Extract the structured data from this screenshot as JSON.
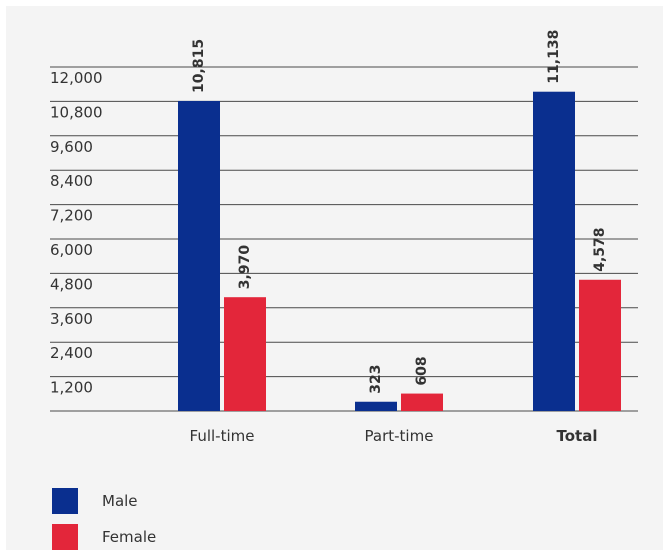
{
  "chart_data": {
    "type": "bar",
    "title": "",
    "xlabel": "",
    "ylabel": "",
    "categories": [
      "Full-time",
      "Part-time",
      "Total"
    ],
    "category_bold": [
      false,
      false,
      true
    ],
    "series": [
      {
        "name": "Male",
        "color": "#0a2f8f",
        "values": [
          10815,
          323,
          11138
        ]
      },
      {
        "name": "Female",
        "color": "#e3263a",
        "values": [
          3970,
          608,
          4578
        ]
      }
    ],
    "value_labels": {
      "Male": [
        "10,815",
        "323",
        "11,138"
      ],
      "Female": [
        "3,970",
        "608",
        "4,578"
      ]
    },
    "yticks": [
      1200,
      2400,
      3600,
      4800,
      6000,
      7200,
      8400,
      9600,
      10800,
      12000
    ],
    "ytick_labels": [
      "1,200",
      "2,400",
      "3,600",
      "4,800",
      "6,000",
      "7,200",
      "8,400",
      "9,600",
      "10,800",
      "12,000"
    ],
    "ylim": [
      0,
      12000
    ],
    "grid": true,
    "legend_position": "bottom-left"
  }
}
